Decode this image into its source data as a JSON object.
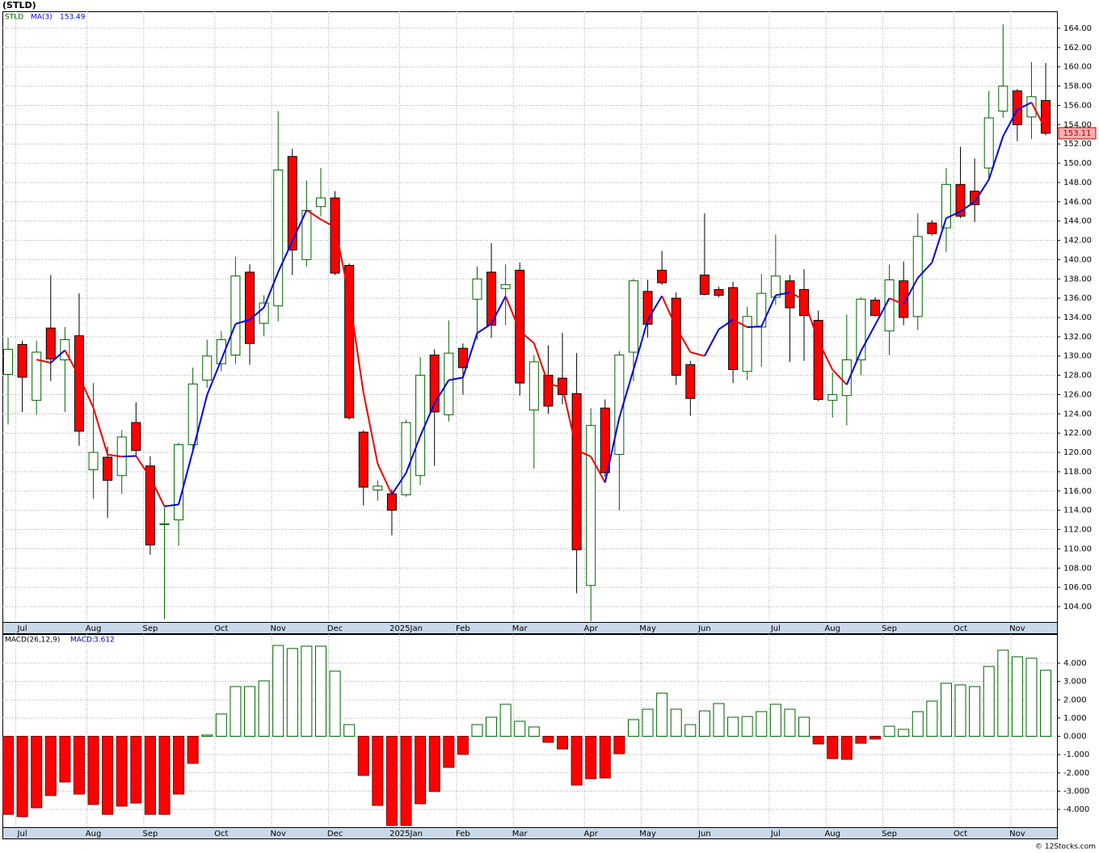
{
  "chart_data": [
    {
      "type": "candlestick",
      "title": "(STLD)",
      "symbol": "STLD",
      "categories": [
        null,
        "Jul",
        null,
        null,
        null,
        null,
        "Aug",
        null,
        null,
        null,
        "Sep",
        null,
        null,
        null,
        null,
        "Oct",
        null,
        null,
        null,
        "Nov",
        null,
        null,
        null,
        "Dec",
        null,
        null,
        null,
        null,
        "2025Jan",
        null,
        null,
        null,
        "Feb",
        null,
        null,
        null,
        "Mar",
        null,
        null,
        null,
        null,
        "Apr",
        null,
        null,
        null,
        "May",
        null,
        null,
        null,
        "Jun",
        null,
        null,
        null,
        null,
        "Jul",
        null,
        null,
        null,
        "Aug",
        null,
        null,
        null,
        "Sep",
        null,
        null,
        null,
        null,
        "Oct",
        null,
        null,
        null,
        "Nov",
        null,
        null
      ],
      "open": [
        128.1,
        131.2,
        125.4,
        132.9,
        129.6,
        132.1,
        118.2,
        119.5,
        117.6,
        123.1,
        118.6,
        112.5,
        113.0,
        120.8,
        127.5,
        129.2,
        130.1,
        138.7,
        133.4,
        135.2,
        150.7,
        140.0,
        145.5,
        146.4,
        139.4,
        122.1,
        116.1,
        115.7,
        115.6,
        117.6,
        130.1,
        123.9,
        130.8,
        135.9,
        138.7,
        137.0,
        138.9,
        124.4,
        128.0,
        127.7,
        126.1,
        106.2,
        124.6,
        119.8,
        130.4,
        136.7,
        138.9,
        136.0,
        129.1,
        138.4,
        136.9,
        137.1,
        128.4,
        133.0,
        136.1,
        137.8,
        136.9,
        133.7,
        125.4,
        125.9,
        129.6,
        135.8,
        132.6,
        137.8,
        134.1,
        143.8,
        143.3,
        147.8,
        147.1,
        149.5,
        155.4,
        157.5,
        154.8,
        156.5
      ],
      "high": [
        131.9,
        131.6,
        131.6,
        138.4,
        133.0,
        136.5,
        127.2,
        120.6,
        122.3,
        125.2,
        119.6,
        114.3,
        121.0,
        128.8,
        131.7,
        132.6,
        140.3,
        139.5,
        136.3,
        155.4,
        151.5,
        148.2,
        149.5,
        147.1,
        139.6,
        122.3,
        117.1,
        116.2,
        123.4,
        129.9,
        130.7,
        133.7,
        131.3,
        139.3,
        141.7,
        139.5,
        139.7,
        130.1,
        131.1,
        132.4,
        130.3,
        124.6,
        125.5,
        130.5,
        138.0,
        137.9,
        140.9,
        136.6,
        129.5,
        144.8,
        137.2,
        137.7,
        135.1,
        138.5,
        142.6,
        138.4,
        139.0,
        134.7,
        128.3,
        134.3,
        136.1,
        136.1,
        139.5,
        139.8,
        144.8,
        144.1,
        149.5,
        151.7,
        150.5,
        157.5,
        164.4,
        157.7,
        160.5,
        160.4
      ],
      "low": [
        122.9,
        124.2,
        123.9,
        127.4,
        124.2,
        120.7,
        115.2,
        113.2,
        115.7,
        119.5,
        109.4,
        102.7,
        110.3,
        120.0,
        126.7,
        128.4,
        129.2,
        129.1,
        132.1,
        133.6,
        138.4,
        139.3,
        144.5,
        138.4,
        123.4,
        114.5,
        115.0,
        111.4,
        115.4,
        116.6,
        118.6,
        123.2,
        126.0,
        131.7,
        131.9,
        133.2,
        125.9,
        118.3,
        124.0,
        125.0,
        105.4,
        102.5,
        117.5,
        114.0,
        127.4,
        131.9,
        137.4,
        127.0,
        123.8,
        136.3,
        136.1,
        127.2,
        127.5,
        128.9,
        135.3,
        129.4,
        129.5,
        125.3,
        123.6,
        122.8,
        128.0,
        134.1,
        130.1,
        133.2,
        132.7,
        142.5,
        140.8,
        144.3,
        143.9,
        148.3,
        154.7,
        152.3,
        152.5,
        152.9
      ],
      "close": [
        130.7,
        127.8,
        130.4,
        129.7,
        131.7,
        122.2,
        120.0,
        117.1,
        121.6,
        120.2,
        110.4,
        112.6,
        120.8,
        127.1,
        130.0,
        131.7,
        138.3,
        131.3,
        135.5,
        149.3,
        141.0,
        145.1,
        146.4,
        138.6,
        123.6,
        116.4,
        116.5,
        114.0,
        123.1,
        128.0,
        124.2,
        130.3,
        128.8,
        138.0,
        133.2,
        137.4,
        127.2,
        129.4,
        124.8,
        126.0,
        109.9,
        122.8,
        117.9,
        130.1,
        137.8,
        133.3,
        137.6,
        128.0,
        125.6,
        136.4,
        136.3,
        128.6,
        134.1,
        136.5,
        138.3,
        135.0,
        134.2,
        125.5,
        126.0,
        129.6,
        135.9,
        134.2,
        137.9,
        134.0,
        142.4,
        142.7,
        147.8,
        144.5,
        145.7,
        154.7,
        158.0,
        154.0,
        156.9,
        153.11
      ],
      "up_color": "#006400",
      "down_color": "#ff0000",
      "ma": {
        "name": "MA(3)",
        "rising_color": "#0000dd",
        "falling_color": "#ee0000",
        "values": [
          null,
          null,
          129.63,
          129.3,
          130.6,
          127.87,
          124.63,
          119.77,
          119.57,
          119.63,
          117.4,
          114.4,
          114.6,
          120.17,
          125.97,
          129.6,
          133.33,
          133.77,
          135.03,
          138.7,
          141.93,
          145.13,
          144.17,
          143.37,
          136.2,
          126.2,
          118.83,
          115.63,
          117.87,
          121.7,
          125.1,
          127.5,
          127.77,
          132.37,
          133.33,
          136.2,
          132.6,
          131.33,
          127.13,
          126.73,
          120.23,
          119.57,
          116.87,
          123.6,
          128.6,
          133.73,
          136.23,
          132.97,
          130.4,
          130.0,
          132.77,
          133.77,
          133.0,
          133.07,
          136.3,
          136.6,
          135.83,
          131.57,
          128.57,
          127.03,
          130.5,
          133.23,
          136.0,
          135.37,
          138.1,
          139.7,
          144.3,
          145.0,
          146.0,
          148.3,
          152.8,
          155.57,
          156.3,
          153.49
        ]
      },
      "ylim": [
        102.41,
        165.76
      ],
      "yticks": [
        {
          "value": 104,
          "label": "104.00"
        },
        {
          "value": 106,
          "label": "106.00"
        },
        {
          "value": 108,
          "label": "108.00"
        },
        {
          "value": 110,
          "label": "110.00"
        },
        {
          "value": 112,
          "label": "112.00"
        },
        {
          "value": 114,
          "label": "114.00"
        },
        {
          "value": 116,
          "label": "116.00"
        },
        {
          "value": 118,
          "label": "118.00"
        },
        {
          "value": 120,
          "label": "120.00"
        },
        {
          "value": 122,
          "label": "122.00"
        },
        {
          "value": 124,
          "label": "124.00"
        },
        {
          "value": 126,
          "label": "126.00"
        },
        {
          "value": 128,
          "label": "128.00"
        },
        {
          "value": 130,
          "label": "130.00"
        },
        {
          "value": 132,
          "label": "132.00"
        },
        {
          "value": 134,
          "label": "134.00"
        },
        {
          "value": 136,
          "label": "136.00"
        },
        {
          "value": 138,
          "label": "138.00"
        },
        {
          "value": 140,
          "label": "140.00"
        },
        {
          "value": 142,
          "label": "142.00"
        },
        {
          "value": 144,
          "label": "144.00"
        },
        {
          "value": 146,
          "label": "146.00"
        },
        {
          "value": 148,
          "label": "148.00"
        },
        {
          "value": 150,
          "label": "150.00"
        },
        {
          "value": 152,
          "label": "152.00"
        },
        {
          "value": 154,
          "label": "154.00"
        },
        {
          "value": 156,
          "label": "156.00"
        },
        {
          "value": 158,
          "label": "158.00"
        },
        {
          "value": 160,
          "label": "160.00"
        },
        {
          "value": 162,
          "label": "162.00"
        },
        {
          "value": 164,
          "label": "164.00"
        }
      ],
      "grid": true
    },
    {
      "type": "bar",
      "title": "MACD(26,12,9)",
      "value_caption": "MACD:",
      "categories": [
        null,
        "Jul",
        null,
        null,
        null,
        null,
        "Aug",
        null,
        null,
        null,
        "Sep",
        null,
        null,
        null,
        null,
        "Oct",
        null,
        null,
        null,
        "Nov",
        null,
        null,
        null,
        "Dec",
        null,
        null,
        null,
        null,
        "2025Jan",
        null,
        null,
        null,
        "Feb",
        null,
        null,
        null,
        "Mar",
        null,
        null,
        null,
        null,
        "Apr",
        null,
        null,
        null,
        "May",
        null,
        null,
        null,
        "Jun",
        null,
        null,
        null,
        null,
        "Jul",
        null,
        null,
        null,
        "Aug",
        null,
        null,
        null,
        "Sep",
        null,
        null,
        null,
        null,
        "Oct",
        null,
        null,
        null,
        "Nov",
        null,
        null
      ],
      "values": [
        -4.27,
        -4.4,
        -3.91,
        -3.24,
        -2.5,
        -3.16,
        -3.73,
        -4.27,
        -3.82,
        -3.65,
        -4.27,
        -4.27,
        -3.16,
        -1.48,
        0.07,
        1.22,
        2.72,
        2.72,
        3.03,
        4.97,
        4.8,
        4.93,
        4.93,
        3.56,
        0.64,
        -2.14,
        -3.78,
        -4.88,
        -4.88,
        -3.69,
        -3.02,
        -1.7,
        -0.99,
        0.64,
        1.04,
        1.75,
        0.82,
        0.51,
        -0.33,
        -0.69,
        -2.67,
        -2.32,
        -2.28,
        -0.95,
        0.91,
        1.48,
        2.36,
        1.48,
        0.64,
        1.39,
        1.79,
        1.04,
        1.08,
        1.35,
        1.75,
        1.48,
        1.04,
        -0.42,
        -1.22,
        -1.26,
        -0.38,
        -0.15,
        0.55,
        0.38,
        1.35,
        1.92,
        2.9,
        2.81,
        2.72,
        3.82,
        4.71,
        4.35,
        4.27,
        3.612
      ],
      "positive_color": "#006400",
      "negative_color": "#ff0000",
      "ylim": [
        -4.97,
        5.59
      ],
      "yticks": [
        {
          "value": -4,
          "label": "-4.000"
        },
        {
          "value": -3,
          "label": "-3.000"
        },
        {
          "value": -2,
          "label": "-2.000"
        },
        {
          "value": -1,
          "label": "-1.000"
        },
        {
          "value": 0,
          "label": "0.000"
        },
        {
          "value": 1,
          "label": "1.000"
        },
        {
          "value": 2,
          "label": "2.000"
        },
        {
          "value": 3,
          "label": "3.000"
        },
        {
          "value": 4,
          "label": "4.000"
        }
      ],
      "grid": true
    }
  ],
  "source": "© 12Stocks.com"
}
